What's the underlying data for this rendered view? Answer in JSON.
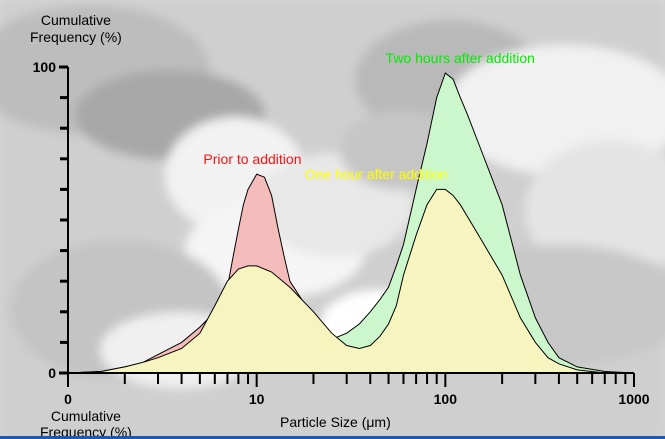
{
  "chart_data": {
    "type": "area",
    "title": "",
    "ylabel": "Cumulative\nFrequency (%)",
    "ylabel_bottom": "Cumulative\nFrequency (%)",
    "xlabel": "Particle Size (μm)",
    "xscale": "log",
    "xlim": [
      1,
      1000
    ],
    "ylim": [
      0,
      100
    ],
    "x_tick_labels": [
      "0",
      "10",
      "100",
      "1000"
    ],
    "y_tick_labels": [
      "100",
      "0"
    ],
    "grid": false,
    "series": [
      {
        "name": "Two hours after addition",
        "color": "#00dd00",
        "fill": "#ccf7cc",
        "points": [
          [
            1,
            0
          ],
          [
            2,
            0.5
          ],
          [
            3,
            1.5
          ],
          [
            5,
            4
          ],
          [
            10,
            5
          ],
          [
            15,
            7
          ],
          [
            20,
            9
          ],
          [
            25,
            11
          ],
          [
            30,
            13
          ],
          [
            35,
            16
          ],
          [
            40,
            20
          ],
          [
            45,
            24
          ],
          [
            50,
            28
          ],
          [
            55,
            35
          ],
          [
            60,
            42
          ],
          [
            70,
            60
          ],
          [
            80,
            75
          ],
          [
            90,
            90
          ],
          [
            100,
            98
          ],
          [
            110,
            96
          ],
          [
            120,
            90
          ],
          [
            130,
            85
          ],
          [
            150,
            75
          ],
          [
            200,
            55
          ],
          [
            250,
            32
          ],
          [
            300,
            18
          ],
          [
            350,
            10
          ],
          [
            400,
            5
          ],
          [
            500,
            2
          ],
          [
            700,
            0.5
          ],
          [
            1000,
            0
          ]
        ]
      },
      {
        "name": "Prior to addition",
        "color": "#ee0000",
        "fill": "#f5bcbc",
        "points": [
          [
            1,
            0
          ],
          [
            1.5,
            0.5
          ],
          [
            2,
            2
          ],
          [
            2.5,
            3.5
          ],
          [
            3,
            6
          ],
          [
            4,
            10
          ],
          [
            5,
            15
          ],
          [
            6,
            20
          ],
          [
            7,
            28
          ],
          [
            7.5,
            38
          ],
          [
            8,
            47
          ],
          [
            8.5,
            55
          ],
          [
            9,
            60
          ],
          [
            10,
            65
          ],
          [
            11,
            64
          ],
          [
            12,
            58
          ],
          [
            13,
            47
          ],
          [
            14,
            38
          ],
          [
            15,
            30
          ],
          [
            20,
            18
          ],
          [
            25,
            8
          ],
          [
            30,
            5
          ],
          [
            35,
            3
          ],
          [
            40,
            2
          ],
          [
            60,
            1
          ],
          [
            100,
            0
          ]
        ]
      },
      {
        "name": "One hour after addition",
        "color": "#ffff00",
        "fill": "#f6f4bf",
        "points": [
          [
            1,
            0
          ],
          [
            1.5,
            0.5
          ],
          [
            2,
            2
          ],
          [
            2.5,
            3.5
          ],
          [
            3,
            5
          ],
          [
            4,
            8
          ],
          [
            5,
            13
          ],
          [
            6,
            22
          ],
          [
            7,
            30
          ],
          [
            8,
            34
          ],
          [
            9,
            35
          ],
          [
            10,
            35
          ],
          [
            12,
            33
          ],
          [
            15,
            28
          ],
          [
            20,
            20
          ],
          [
            25,
            13
          ],
          [
            30,
            9
          ],
          [
            35,
            8
          ],
          [
            40,
            9
          ],
          [
            45,
            12
          ],
          [
            50,
            16
          ],
          [
            55,
            22
          ],
          [
            60,
            32
          ],
          [
            70,
            45
          ],
          [
            80,
            55
          ],
          [
            90,
            60
          ],
          [
            100,
            60
          ],
          [
            110,
            58
          ],
          [
            120,
            55
          ],
          [
            150,
            45
          ],
          [
            200,
            32
          ],
          [
            250,
            18
          ],
          [
            300,
            10
          ],
          [
            350,
            5
          ],
          [
            400,
            3
          ],
          [
            500,
            1
          ],
          [
            700,
            0
          ],
          [
            1000,
            0
          ]
        ]
      }
    ],
    "annotations": [
      {
        "text": "Prior to addition",
        "color": "#ff1111",
        "x": 9.5,
        "y": 70
      },
      {
        "text": "One hour after addition",
        "color": "#ffff00",
        "x": 43,
        "y": 65
      },
      {
        "text": "Two hours after addition",
        "color": "#00ee00",
        "x": 120,
        "y": 103
      }
    ]
  }
}
